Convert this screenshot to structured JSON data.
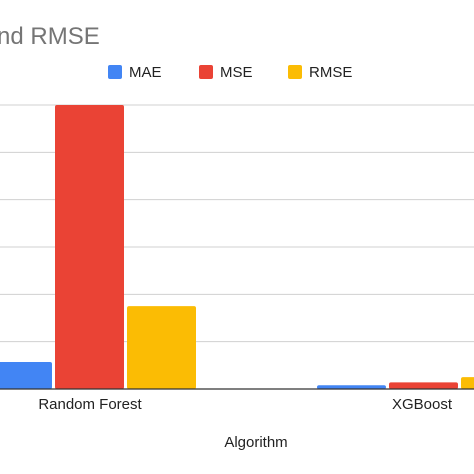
{
  "chart_data": {
    "type": "bar",
    "title": "nd RMSE",
    "xlabel": "Algorithm",
    "ylabel": "",
    "categories": [
      "Random Forest",
      "XGBoost"
    ],
    "series": [
      {
        "name": "MAE",
        "color": "#4285f4",
        "values": [
          0.57,
          0.08
        ]
      },
      {
        "name": "MSE",
        "color": "#ea4335",
        "values": [
          6.0,
          0.14
        ]
      },
      {
        "name": "RMSE",
        "color": "#fbbc04",
        "values": [
          1.75,
          0.25
        ]
      }
    ],
    "ylim": [
      0,
      6
    ],
    "grid": true,
    "legend": "top-right"
  }
}
